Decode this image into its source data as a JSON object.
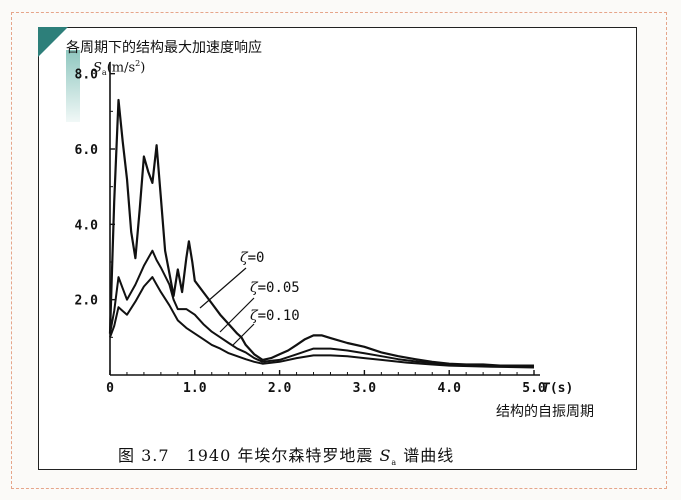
{
  "annotations": {
    "top": "各周期下的结构最大加速度响应",
    "bottom": "结构的自振周期"
  },
  "caption": {
    "prefix": "图 3.7　1940 年埃尔森特罗地震",
    "symbol": "S",
    "subscript": "a",
    "suffix": "谱曲线"
  },
  "y_axis_label": {
    "symbol": "S",
    "subscript": "a",
    "unit_prefix": "(m/s",
    "unit_exp": "2",
    "unit_suffix": ")"
  },
  "colors": {
    "frame_border": "#e6a58a",
    "accent_teal": "#2d7f7a",
    "curve": "#111111"
  },
  "chart_data": {
    "type": "line",
    "title": "",
    "xlabel": "T(s)",
    "ylabel": "Sa(m/s²)",
    "xlim": [
      0,
      5.0
    ],
    "ylim": [
      0,
      9.0
    ],
    "x_ticks": [
      0,
      1.0,
      2.0,
      3.0,
      4.0,
      5.0
    ],
    "x_tick_labels": [
      "0",
      "1.0",
      "2.0",
      "3.0",
      "4.0",
      "5.0"
    ],
    "y_ticks": [
      2.0,
      4.0,
      6.0,
      8.0
    ],
    "y_tick_labels": [
      "2.0",
      "4.0",
      "6.0",
      "8.0"
    ],
    "grid": false,
    "series": [
      {
        "name": "ζ=0",
        "points": [
          [
            0,
            1.1
          ],
          [
            0.05,
            4.6
          ],
          [
            0.1,
            7.3
          ],
          [
            0.15,
            6.2
          ],
          [
            0.2,
            5.2
          ],
          [
            0.25,
            3.8
          ],
          [
            0.3,
            3.1
          ],
          [
            0.35,
            4.4
          ],
          [
            0.4,
            5.8
          ],
          [
            0.45,
            5.4
          ],
          [
            0.5,
            5.1
          ],
          [
            0.55,
            6.1
          ],
          [
            0.6,
            4.7
          ],
          [
            0.65,
            3.3
          ],
          [
            0.7,
            2.7
          ],
          [
            0.75,
            2.1
          ],
          [
            0.8,
            2.8
          ],
          [
            0.85,
            2.2
          ],
          [
            0.9,
            3.1
          ],
          [
            0.93,
            3.55
          ],
          [
            0.97,
            3.0
          ],
          [
            1.0,
            2.5
          ],
          [
            1.1,
            2.2
          ],
          [
            1.2,
            1.9
          ],
          [
            1.3,
            1.6
          ],
          [
            1.4,
            1.35
          ],
          [
            1.5,
            1.1
          ],
          [
            1.55,
            1.0
          ],
          [
            1.6,
            0.8
          ],
          [
            1.7,
            0.55
          ],
          [
            1.8,
            0.4
          ],
          [
            1.9,
            0.45
          ],
          [
            2.0,
            0.55
          ],
          [
            2.1,
            0.65
          ],
          [
            2.2,
            0.8
          ],
          [
            2.3,
            0.95
          ],
          [
            2.4,
            1.05
          ],
          [
            2.5,
            1.05
          ],
          [
            2.6,
            0.98
          ],
          [
            2.8,
            0.85
          ],
          [
            3.0,
            0.75
          ],
          [
            3.2,
            0.6
          ],
          [
            3.4,
            0.5
          ],
          [
            3.6,
            0.42
          ],
          [
            3.8,
            0.35
          ],
          [
            4.0,
            0.3
          ],
          [
            4.2,
            0.28
          ],
          [
            4.4,
            0.28
          ],
          [
            4.6,
            0.25
          ],
          [
            4.8,
            0.25
          ],
          [
            5.0,
            0.25
          ]
        ]
      },
      {
        "name": "ζ=0.05",
        "points": [
          [
            0,
            1.1
          ],
          [
            0.05,
            1.7
          ],
          [
            0.1,
            2.6
          ],
          [
            0.15,
            2.3
          ],
          [
            0.2,
            2.0
          ],
          [
            0.3,
            2.4
          ],
          [
            0.4,
            2.9
          ],
          [
            0.5,
            3.3
          ],
          [
            0.55,
            3.05
          ],
          [
            0.6,
            2.85
          ],
          [
            0.7,
            2.4
          ],
          [
            0.75,
            2.0
          ],
          [
            0.8,
            1.75
          ],
          [
            0.9,
            1.75
          ],
          [
            1.0,
            1.6
          ],
          [
            1.1,
            1.35
          ],
          [
            1.2,
            1.15
          ],
          [
            1.3,
            1.0
          ],
          [
            1.4,
            0.85
          ],
          [
            1.5,
            0.7
          ],
          [
            1.6,
            0.6
          ],
          [
            1.7,
            0.45
          ],
          [
            1.8,
            0.35
          ],
          [
            2.0,
            0.4
          ],
          [
            2.2,
            0.55
          ],
          [
            2.4,
            0.7
          ],
          [
            2.6,
            0.7
          ],
          [
            2.8,
            0.65
          ],
          [
            3.0,
            0.58
          ],
          [
            3.2,
            0.5
          ],
          [
            3.4,
            0.42
          ],
          [
            3.6,
            0.36
          ],
          [
            3.8,
            0.32
          ],
          [
            4.0,
            0.28
          ],
          [
            4.5,
            0.25
          ],
          [
            5.0,
            0.22
          ]
        ]
      },
      {
        "name": "ζ=0.10",
        "points": [
          [
            0,
            1.0
          ],
          [
            0.05,
            1.3
          ],
          [
            0.1,
            1.8
          ],
          [
            0.15,
            1.7
          ],
          [
            0.2,
            1.6
          ],
          [
            0.3,
            1.95
          ],
          [
            0.4,
            2.35
          ],
          [
            0.5,
            2.6
          ],
          [
            0.55,
            2.4
          ],
          [
            0.6,
            2.2
          ],
          [
            0.7,
            1.85
          ],
          [
            0.8,
            1.45
          ],
          [
            0.9,
            1.25
          ],
          [
            1.0,
            1.1
          ],
          [
            1.1,
            0.95
          ],
          [
            1.2,
            0.8
          ],
          [
            1.3,
            0.7
          ],
          [
            1.4,
            0.58
          ],
          [
            1.5,
            0.5
          ],
          [
            1.6,
            0.42
          ],
          [
            1.7,
            0.35
          ],
          [
            1.8,
            0.3
          ],
          [
            2.0,
            0.35
          ],
          [
            2.2,
            0.45
          ],
          [
            2.4,
            0.52
          ],
          [
            2.6,
            0.52
          ],
          [
            2.8,
            0.5
          ],
          [
            3.0,
            0.45
          ],
          [
            3.2,
            0.4
          ],
          [
            3.5,
            0.33
          ],
          [
            3.8,
            0.28
          ],
          [
            4.0,
            0.25
          ],
          [
            4.5,
            0.22
          ],
          [
            5.0,
            0.2
          ]
        ]
      }
    ]
  }
}
